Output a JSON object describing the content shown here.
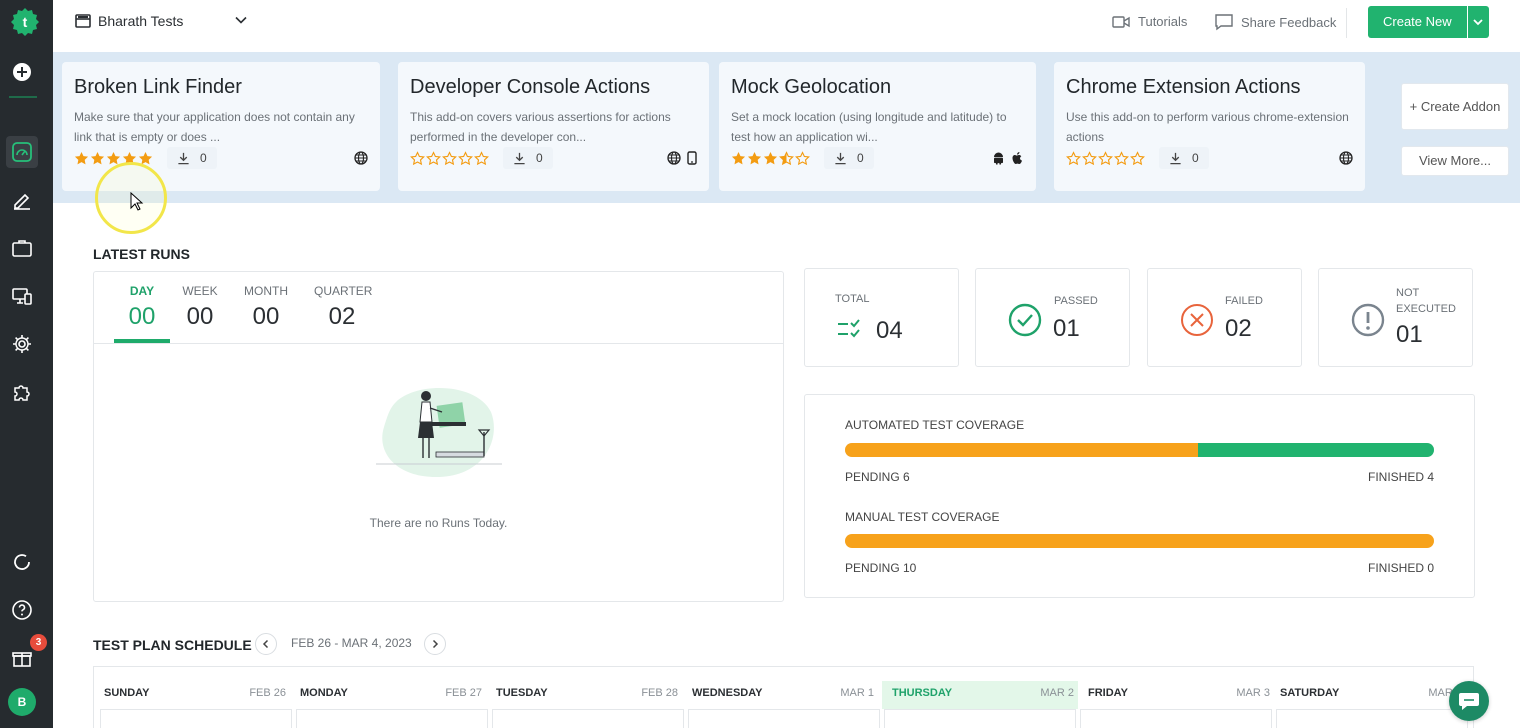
{
  "sidebar": {
    "items": [
      "add-icon",
      "dashboard-icon",
      "pencil-icon",
      "briefcase-icon",
      "devices-icon",
      "gear-icon",
      "puzzle-icon"
    ],
    "bottom_items": [
      "refresh-icon",
      "help-icon",
      "gift-icon"
    ],
    "notification_count": "3",
    "avatar_initial": "B"
  },
  "topbar": {
    "workspace_name": "Bharath Tests",
    "tutorials_label": "Tutorials",
    "feedback_label": "Share Feedback",
    "create_new_label": "Create New"
  },
  "addons": {
    "cards": [
      {
        "title": "Broken Link Finder",
        "description": "Make sure that your application does not contain any link that is empty or does ...",
        "rating": 5,
        "downloads": "0",
        "platforms": [
          "web"
        ]
      },
      {
        "title": "Developer Console Actions",
        "description": "This add-on covers various assertions for actions performed in the developer con...",
        "rating": 0,
        "downloads": "0",
        "platforms": [
          "web",
          "mobile"
        ]
      },
      {
        "title": "Mock Geolocation",
        "description": "Set a mock location (using longitude and latitude) to test how an application wi...",
        "rating": 3.5,
        "downloads": "0",
        "platforms": [
          "android",
          "apple"
        ]
      },
      {
        "title": "Chrome Extension Actions",
        "description": "Use this add-on to perform various chrome-extension actions",
        "rating": 0,
        "downloads": "0",
        "platforms": [
          "web"
        ]
      }
    ],
    "create_addon_label": "+ Create Addon",
    "view_more_label": "View More..."
  },
  "latest_runs": {
    "title": "LATEST RUNS",
    "tabs": [
      {
        "label": "DAY",
        "value": "00",
        "active": true
      },
      {
        "label": "WEEK",
        "value": "00",
        "active": false
      },
      {
        "label": "MONTH",
        "value": "00",
        "active": false
      },
      {
        "label": "QUARTER",
        "value": "02",
        "active": false
      }
    ],
    "empty_text": "There are no Runs Today."
  },
  "stats": {
    "total": {
      "label": "TOTAL",
      "value": "04"
    },
    "passed": {
      "label": "PASSED",
      "value": "01"
    },
    "failed": {
      "label": "FAILED",
      "value": "02"
    },
    "not_executed": {
      "label": "NOT EXECUTED",
      "value": "01"
    }
  },
  "coverage": {
    "automated": {
      "label": "AUTOMATED TEST COVERAGE",
      "pending_label": "PENDING 6",
      "finished_label": "FINISHED 4",
      "pending": 6,
      "finished": 4
    },
    "manual": {
      "label": "MANUAL TEST COVERAGE",
      "pending_label": "PENDING 10",
      "finished_label": "FINISHED 0",
      "pending": 10,
      "finished": 0
    }
  },
  "colors": {
    "brand": "#21b36f",
    "pending": "#f7a21b",
    "passed": "#1fa26a",
    "failed": "#e8643c",
    "not_executed": "#7a848e"
  },
  "schedule": {
    "title": "TEST PLAN SCHEDULE",
    "range": "FEB 26 - MAR 4, 2023",
    "days": [
      {
        "name": "SUNDAY",
        "date": "FEB 26"
      },
      {
        "name": "MONDAY",
        "date": "FEB 27"
      },
      {
        "name": "TUESDAY",
        "date": "FEB 28"
      },
      {
        "name": "WEDNESDAY",
        "date": "MAR 1"
      },
      {
        "name": "THURSDAY",
        "date": "MAR 2",
        "today": true
      },
      {
        "name": "FRIDAY",
        "date": "MAR 3"
      },
      {
        "name": "SATURDAY",
        "date": "MAR 4"
      }
    ]
  }
}
